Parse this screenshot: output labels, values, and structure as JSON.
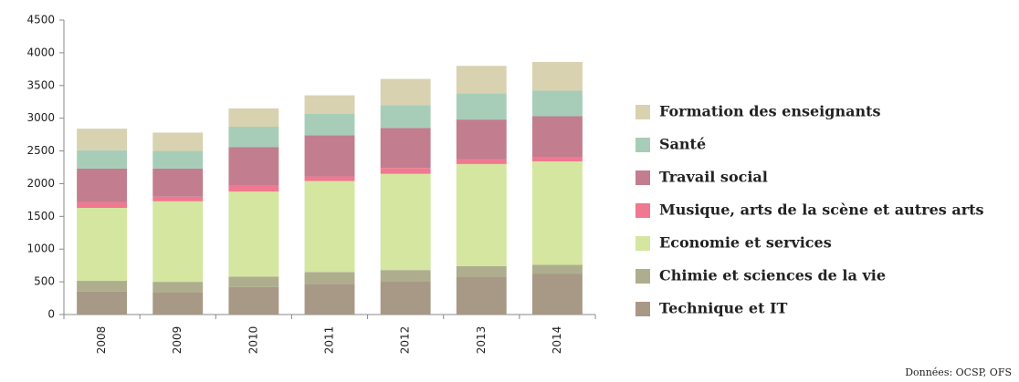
{
  "chart_data": {
    "type": "stacked_bar",
    "categories": [
      "2008",
      "2009",
      "2010",
      "2011",
      "2012",
      "2013",
      "2014"
    ],
    "series": [
      {
        "name": "Technique et IT",
        "color": "#a89886",
        "values": [
          350,
          340,
          420,
          470,
          510,
          580,
          620
        ]
      },
      {
        "name": "Chimie et sciences de la vie",
        "color": "#aeae8e",
        "values": [
          165,
          160,
          160,
          180,
          170,
          160,
          140
        ]
      },
      {
        "name": "Economie et services",
        "color": "#d4e6a0",
        "values": [
          1115,
          1230,
          1300,
          1390,
          1470,
          1560,
          1580
        ]
      },
      {
        "name": "Musique, arts de la scène et autres arts",
        "color": "#f07890",
        "values": [
          85,
          70,
          90,
          70,
          90,
          70,
          70
        ]
      },
      {
        "name": "Travail social",
        "color": "#c27d8f",
        "values": [
          515,
          430,
          590,
          630,
          610,
          610,
          620
        ]
      },
      {
        "name": "Santé",
        "color": "#a7cdb8",
        "values": [
          280,
          270,
          310,
          330,
          350,
          400,
          390
        ]
      },
      {
        "name": "Formation des enseignants",
        "color": "#d8d2b0",
        "values": [
          330,
          280,
          280,
          280,
          400,
          420,
          440
        ]
      }
    ],
    "ylim": [
      0,
      4500
    ],
    "yticks": [
      0,
      500,
      1000,
      1500,
      2000,
      2500,
      3000,
      3500,
      4000,
      4500
    ],
    "legend": "right",
    "source": "Données: OCSP, OFS"
  }
}
